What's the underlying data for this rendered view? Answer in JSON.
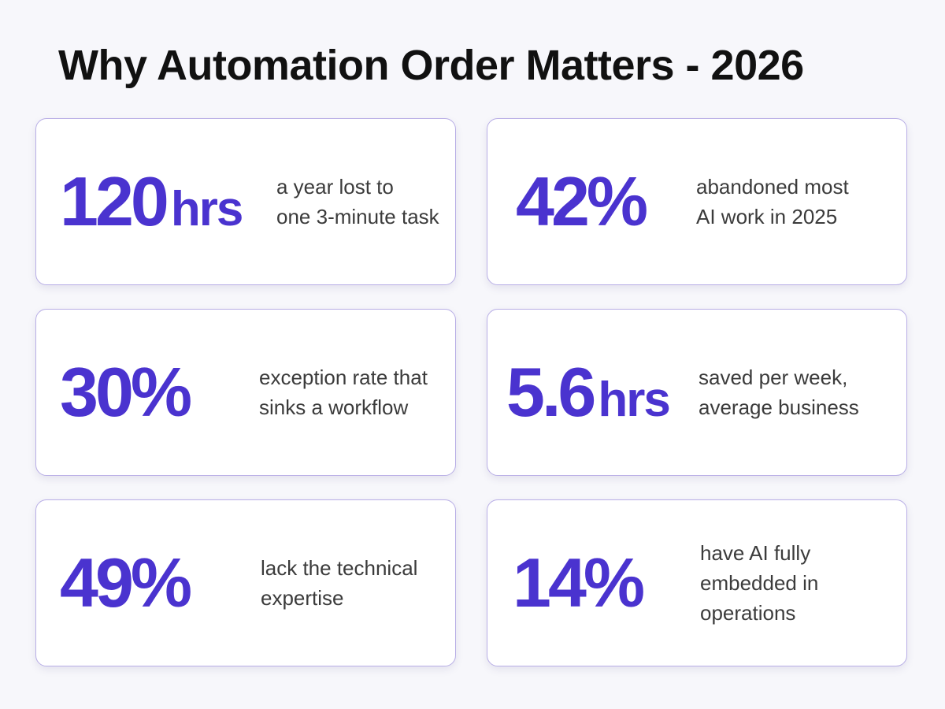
{
  "title": "Why Automation Order Matters - 2026",
  "accent_color": "#4a33cf",
  "cards": [
    {
      "value": "120",
      "unit": "hrs",
      "description": "a year lost to\none 3-minute task"
    },
    {
      "value": "42%",
      "unit": "",
      "description": "abandoned most\nAI work in 2025"
    },
    {
      "value": "30%",
      "unit": "",
      "description": "exception rate that\nsinks a workflow"
    },
    {
      "value": "5.6",
      "unit": "hrs",
      "description": "saved per week,\naverage business"
    },
    {
      "value": "49%",
      "unit": "",
      "description": "lack the technical\nexpertise"
    },
    {
      "value": "14%",
      "unit": "",
      "description": "have AI fully\nembedded in\noperations"
    }
  ]
}
